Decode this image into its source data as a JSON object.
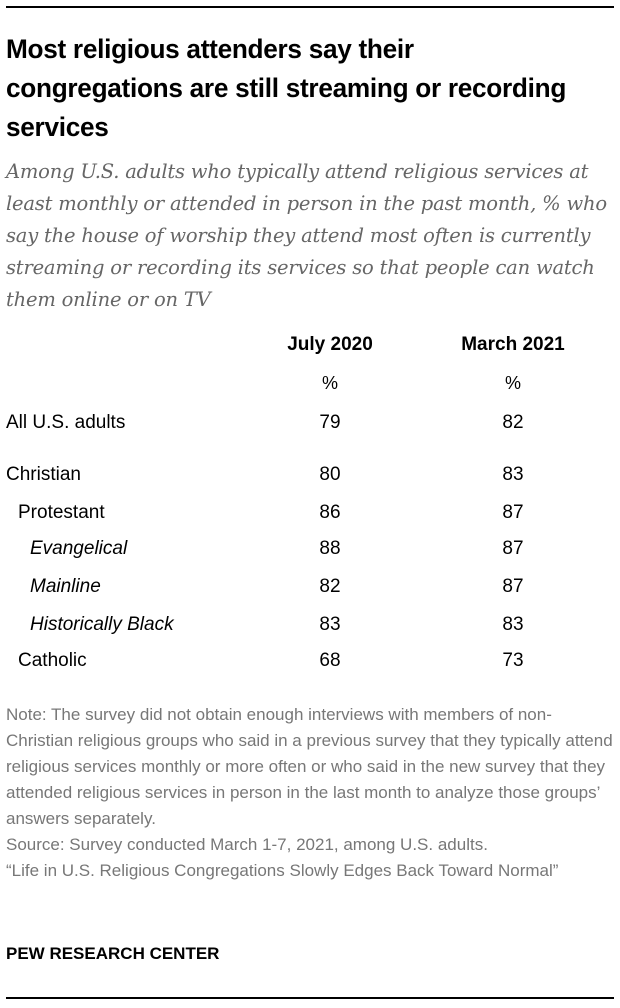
{
  "title": "Most religious attenders say their congregations are still streaming or recording services",
  "subtitle": "Among U.S. adults who typically attend religious services at least monthly or attended in person in the past month, % who say the house of worship they attend most often is currently streaming or recording its services so that people can watch them online or on TV",
  "chart_data": {
    "type": "table",
    "columns": [
      "July 2020",
      "March 2021"
    ],
    "unit_row": [
      "%",
      "%"
    ],
    "rows": [
      {
        "label": "All U.S. adults",
        "indent": 0,
        "italic": false,
        "values": [
          79,
          82
        ]
      },
      {
        "label": "Christian",
        "indent": 0,
        "italic": false,
        "values": [
          80,
          83
        ]
      },
      {
        "label": "Protestant",
        "indent": 1,
        "italic": false,
        "values": [
          86,
          87
        ]
      },
      {
        "label": "Evangelical",
        "indent": 2,
        "italic": true,
        "values": [
          88,
          87
        ]
      },
      {
        "label": "Mainline",
        "indent": 2,
        "italic": true,
        "values": [
          82,
          87
        ]
      },
      {
        "label": "Historically Black",
        "indent": 2,
        "italic": true,
        "values": [
          83,
          83
        ]
      },
      {
        "label": "Catholic",
        "indent": 1,
        "italic": false,
        "values": [
          68,
          73
        ]
      }
    ]
  },
  "note": "Note: The survey did not obtain enough interviews with members of non-Christian religious groups who said in a previous survey that they typically attend religious services monthly or more often or who said in the new survey that they attended religious services in person in the last month to analyze those groups’ answers separately.",
  "source": "Source: Survey conducted March 1-7, 2021, among U.S. adults.",
  "report": "“Life in U.S. Religious Congregations Slowly Edges Back Toward Normal”",
  "brand": "PEW RESEARCH CENTER"
}
